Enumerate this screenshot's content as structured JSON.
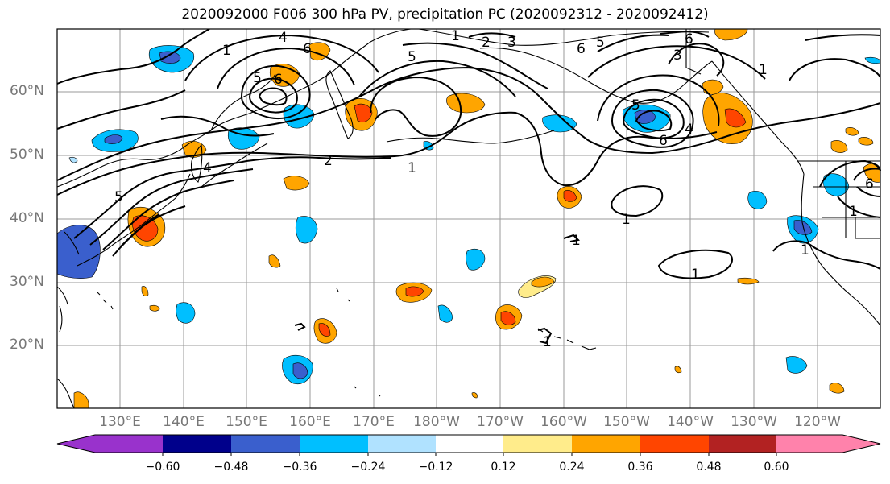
{
  "title": "2020092000 F006 300 hPa PV, precipitation PC (2020092312 - 2020092412)",
  "lat_ticks": [
    "60°N",
    "50°N",
    "40°N",
    "30°N",
    "20°N"
  ],
  "lon_ticks": [
    "130°E",
    "140°E",
    "150°E",
    "160°E",
    "170°E",
    "180°W",
    "170°W",
    "160°W",
    "150°W",
    "140°W",
    "130°W",
    "120°W"
  ],
  "colorbar": {
    "labels": [
      "−0.60",
      "−0.48",
      "−0.36",
      "−0.24",
      "−0.12",
      "0.12",
      "0.24",
      "0.36",
      "0.48",
      "0.60"
    ],
    "colors": [
      "#9932cc",
      "#00008b",
      "#3a5fcd",
      "#00bfff",
      "#b0e2ff",
      "#ffffff",
      "#ffec8b",
      "#ffa500",
      "#ff4500",
      "#b22222",
      "#ff82ab"
    ]
  },
  "contour_labels": [
    "1",
    "2",
    "3",
    "4",
    "5",
    "6"
  ],
  "pv_contour_levels": [
    1,
    2,
    3,
    4,
    5,
    6
  ]
}
